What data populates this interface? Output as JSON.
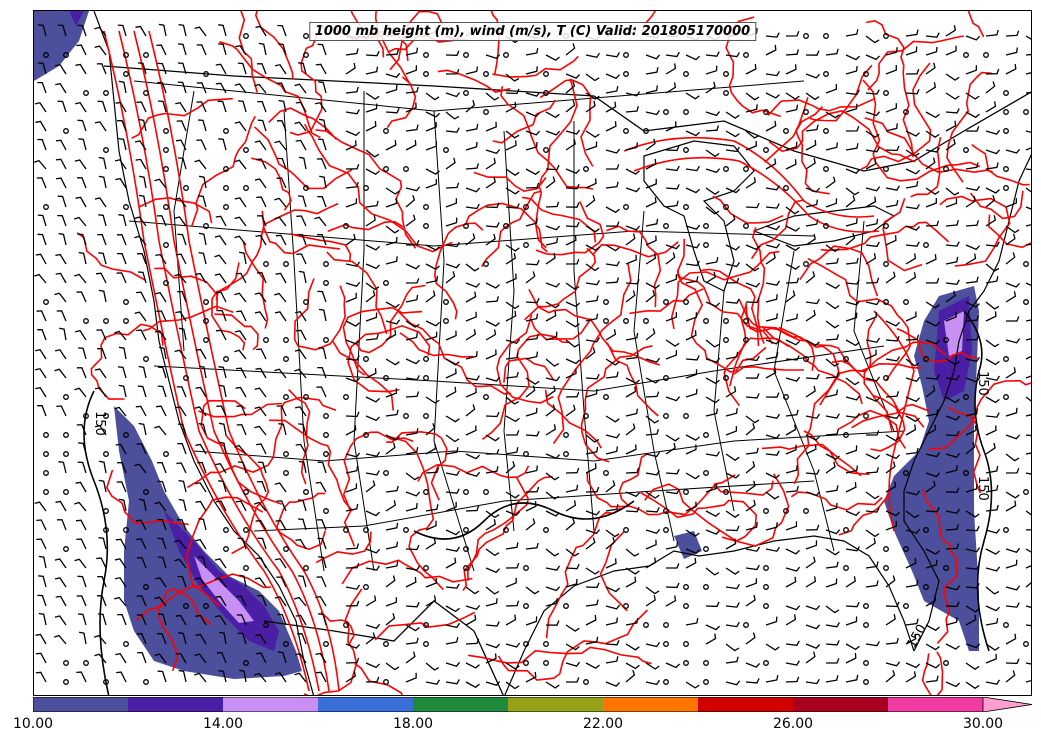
{
  "title": "1000 mb height (m), wind (m/s), T (C) Valid: 201805170000",
  "colors": {
    "temperature_contour": "#ff0000",
    "height_contour": "#000000",
    "border": "#000000"
  },
  "height_contour_labels": [
    "150",
    "150",
    "150",
    "150"
  ],
  "colorbar": {
    "colors": [
      "#4b4f9c",
      "#4a1fa6",
      "#c890f5",
      "#3a6ed8",
      "#1f8a3b",
      "#97a117",
      "#ff7500",
      "#d10000",
      "#a8001f",
      "#f03ca0",
      "#ff9ed0"
    ],
    "ticks": [
      "10.00",
      "14.00",
      "18.00",
      "22.00",
      "26.00",
      "30.00"
    ],
    "range": [
      10,
      32
    ],
    "extend": "max"
  },
  "icons": {
    "wind_barb": "wind-barb-icon",
    "calm": "calm-circle-icon"
  }
}
